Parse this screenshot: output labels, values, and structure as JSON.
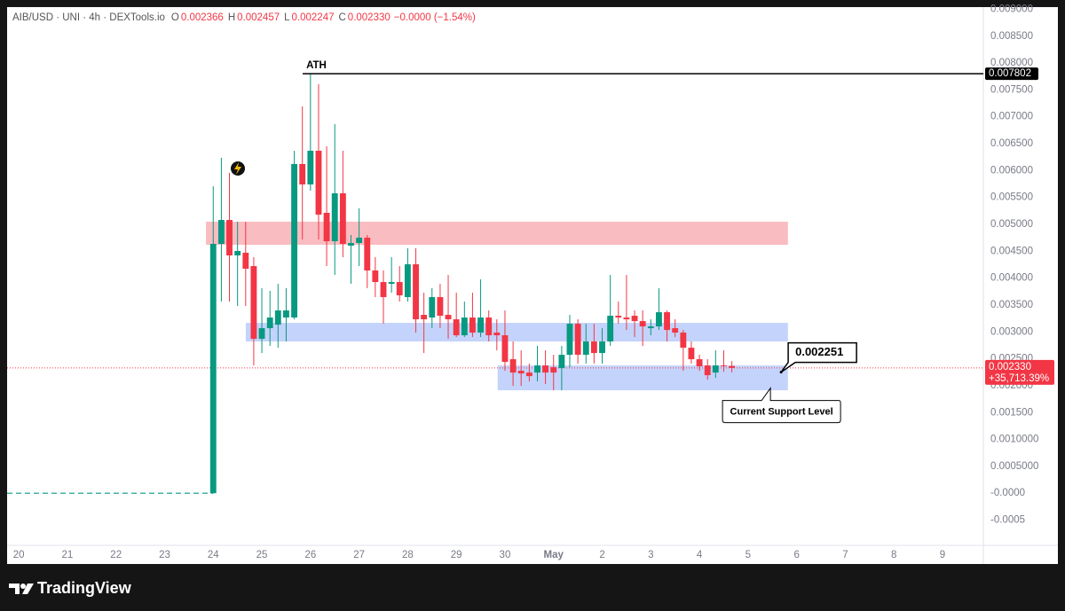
{
  "header": {
    "symbol": "AIB/USD · UNI · 4h · DEXTools.io",
    "items": [
      {
        "key": "O",
        "value": "0.002366"
      },
      {
        "key": "H",
        "value": "0.002457"
      },
      {
        "key": "L",
        "value": "0.002247"
      },
      {
        "key": "C",
        "value": "0.002330"
      }
    ],
    "change": "−0.0000 (−1.54%)"
  },
  "footer": {
    "brand": "TradingView"
  },
  "chart_data": {
    "type": "candlestick",
    "grid": false,
    "up_color": "#089981",
    "down_color": "#f23645",
    "xlim": [
      -0.24,
      19.84
    ],
    "ylim": [
      -0.00097,
      0.00904
    ],
    "xticks": [
      {
        "value": 0,
        "label": "20"
      },
      {
        "value": 1,
        "label": "21"
      },
      {
        "value": 2,
        "label": "22"
      },
      {
        "value": 3,
        "label": "23"
      },
      {
        "value": 4,
        "label": "24"
      },
      {
        "value": 5,
        "label": "25"
      },
      {
        "value": 6,
        "label": "26"
      },
      {
        "value": 7,
        "label": "27"
      },
      {
        "value": 8,
        "label": "28"
      },
      {
        "value": 9,
        "label": "29"
      },
      {
        "value": 10,
        "label": "30"
      },
      {
        "value": 11,
        "label": "May"
      },
      {
        "value": 12,
        "label": "2"
      },
      {
        "value": 13,
        "label": "3"
      },
      {
        "value": 14,
        "label": "4"
      },
      {
        "value": 15,
        "label": "5"
      },
      {
        "value": 16,
        "label": "6"
      },
      {
        "value": 17,
        "label": "7"
      },
      {
        "value": 18,
        "label": "8"
      },
      {
        "value": 19,
        "label": "9"
      }
    ],
    "yticks": [
      {
        "value": 0.009,
        "label": "0.009000"
      },
      {
        "value": 0.0085,
        "label": "0.008500"
      },
      {
        "value": 0.008,
        "label": "0.008000"
      },
      {
        "value": 0.0075,
        "label": "0.007500"
      },
      {
        "value": 0.007,
        "label": "0.007000"
      },
      {
        "value": 0.0065,
        "label": "0.006500"
      },
      {
        "value": 0.006,
        "label": "0.006000"
      },
      {
        "value": 0.0055,
        "label": "0.005500"
      },
      {
        "value": 0.005,
        "label": "0.005000"
      },
      {
        "value": 0.0045,
        "label": "0.004500"
      },
      {
        "value": 0.004,
        "label": "0.004000"
      },
      {
        "value": 0.0035,
        "label": "0.003500"
      },
      {
        "value": 0.003,
        "label": "0.003000"
      },
      {
        "value": 0.0025,
        "label": "0.002500"
      },
      {
        "value": 0.002,
        "label": "0.002000"
      },
      {
        "value": 0.0015,
        "label": "0.001500"
      },
      {
        "value": 0.001,
        "label": "0.0010000"
      },
      {
        "value": 0.0005,
        "label": "0.0005000"
      },
      {
        "value": 0,
        "label": "-0.0000"
      },
      {
        "value": -0.0005,
        "label": "-0.0005"
      }
    ],
    "x": [
      4,
      4.167,
      4.333,
      4.5,
      4.667,
      4.833,
      5,
      5.167,
      5.333,
      5.5,
      5.667,
      5.833,
      6,
      6.167,
      6.333,
      6.5,
      6.667,
      6.833,
      7,
      7.167,
      7.333,
      7.5,
      7.667,
      7.833,
      8,
      8.167,
      8.333,
      8.5,
      8.667,
      8.833,
      9,
      9.167,
      9.333,
      9.5,
      9.667,
      9.833,
      10,
      10.167,
      10.333,
      10.5,
      10.667,
      10.833,
      11,
      11.167,
      11.333,
      11.5,
      11.667,
      11.833,
      12,
      12.167,
      12.333,
      12.5,
      12.667,
      12.833,
      13,
      13.167,
      13.333,
      13.5,
      13.667,
      13.833,
      14,
      14.167,
      14.333,
      14.5,
      14.667
    ],
    "open": [
      0,
      0.004637,
      0.005082,
      0.004422,
      0.004472,
      0.004224,
      0.002871,
      0.003069,
      0.003135,
      0.003267,
      0.003267,
      0.006122,
      0.005742,
      0.006369,
      0.005214,
      0.004686,
      0.005577,
      0.004604,
      0.004653,
      0.004752,
      0.004142,
      0.003927,
      0.003894,
      0.003927,
      0.003647,
      0.004257,
      0.003317,
      0.003267,
      0.003647,
      0.003317,
      0.003234,
      0.002937,
      0.003267,
      0.002987,
      0.003267,
      0.002987,
      0.002937,
      0.002492,
      0.002277,
      0.002244,
      0.002244,
      0.002376,
      0.002343,
      0.002327,
      0.002574,
      0.003152,
      0.002574,
      0.002822,
      0.002607,
      0.002822,
      0.0033,
      0.003267,
      0.0033,
      0.003201,
      0.003069,
      0.003102,
      0.003366,
      0.003069,
      0.002987,
      0.002706,
      0.002492,
      0.002376,
      0.002244,
      0.002376,
      0.002366
    ],
    "high": [
      0.005709,
      0.006237,
      0.005957,
      0.005049,
      0.005049,
      0.004389,
      0.003812,
      0.003762,
      0.003894,
      0.003812,
      0.006369,
      0.007194,
      0.007802,
      0.007607,
      0.006452,
      0.006864,
      0.006369,
      0.004802,
      0.005297,
      0.004802,
      0.004389,
      0.004142,
      0.004389,
      0.004224,
      0.004554,
      0.004554,
      0.003729,
      0.003812,
      0.003894,
      0.004059,
      0.003729,
      0.003564,
      0.003729,
      0.003977,
      0.003399,
      0.003234,
      0.003399,
      0.002822,
      0.002657,
      0.002409,
      0.002739,
      0.002657,
      0.002574,
      0.002739,
      0.003317,
      0.003234,
      0.003152,
      0.003152,
      0.003069,
      0.004059,
      0.003564,
      0.004059,
      0.003399,
      0.003399,
      0.003234,
      0.003812,
      0.003399,
      0.003234,
      0.003036,
      0.002822,
      0.002574,
      0.002492,
      0.002657,
      0.002657,
      0.002457
    ],
    "low": [
      0,
      0.003564,
      0.003564,
      0.003482,
      0.003482,
      0.002376,
      0.002607,
      0.002739,
      0.002706,
      0.002822,
      0.003234,
      0.004719,
      0.005627,
      0.004719,
      0.004224,
      0.004059,
      0.004389,
      0.003894,
      0.004224,
      0.003812,
      0.003647,
      0.003152,
      0.003729,
      0.003564,
      0.003564,
      0.002987,
      0.002607,
      0.003069,
      0.003069,
      0.002871,
      0.002904,
      0.002904,
      0.002904,
      0.002904,
      0.002822,
      0.002657,
      0.002277,
      0.001997,
      0.001997,
      0.002079,
      0.002079,
      0.00203,
      0.001914,
      0.001914,
      0.002343,
      0.002409,
      0.002409,
      0.002409,
      0.002409,
      0.002739,
      0.003152,
      0.003036,
      0.002904,
      0.002739,
      0.002937,
      0.003036,
      0.002822,
      0.002904,
      0.002277,
      0.002409,
      0.002277,
      0.002112,
      0.002145,
      0.00226,
      0.002247
    ],
    "close": [
      0.004637,
      0.005082,
      0.004422,
      0.004505,
      0.004175,
      0.002871,
      0.003069,
      0.003267,
      0.003399,
      0.003399,
      0.006122,
      0.005742,
      0.006369,
      0.005181,
      0.004686,
      0.005577,
      0.004637,
      0.004653,
      0.004752,
      0.004142,
      0.003927,
      0.003647,
      0.003927,
      0.00368,
      0.004257,
      0.003234,
      0.003234,
      0.003647,
      0.0033,
      0.003234,
      0.002937,
      0.003267,
      0.002987,
      0.003267,
      0.002937,
      0.002937,
      0.002442,
      0.002244,
      0.002228,
      0.002178,
      0.002376,
      0.002244,
      0.002244,
      0.002574,
      0.003152,
      0.002574,
      0.002822,
      0.002607,
      0.002822,
      0.0033,
      0.003267,
      0.003234,
      0.003201,
      0.003102,
      0.003102,
      0.003366,
      0.003036,
      0.002987,
      0.002706,
      0.002492,
      0.00236,
      0.002195,
      0.002376,
      0.00236,
      0.00233
    ],
    "listing_line": {
      "value": 0,
      "end_x": 4,
      "color": "#089981"
    },
    "zones": [
      {
        "low": 0.00462,
        "high": 0.005049,
        "start_x": 3.85,
        "end_x": 15.82,
        "color": "#f9bcc1"
      },
      {
        "low": 0.002822,
        "high": 0.003168,
        "start_x": 4.67,
        "end_x": 15.82,
        "color": "#c4d3fb"
      },
      {
        "low": 0.001914,
        "high": 0.002376,
        "start_x": 9.85,
        "end_x": 15.82,
        "color": "#c4d3fb"
      }
    ],
    "ath": {
      "text": "ATH",
      "value": 0.007802,
      "value_label": "0.007802",
      "start_x": 5.84
    },
    "current_price": {
      "value": 0.00233,
      "value_label": "0.002330",
      "change": "+35,713.39%",
      "color": "#f23645"
    },
    "support": {
      "value": 0.002251,
      "value_label": "0.002251",
      "x": 15.68,
      "note": "Current Support Level"
    }
  }
}
